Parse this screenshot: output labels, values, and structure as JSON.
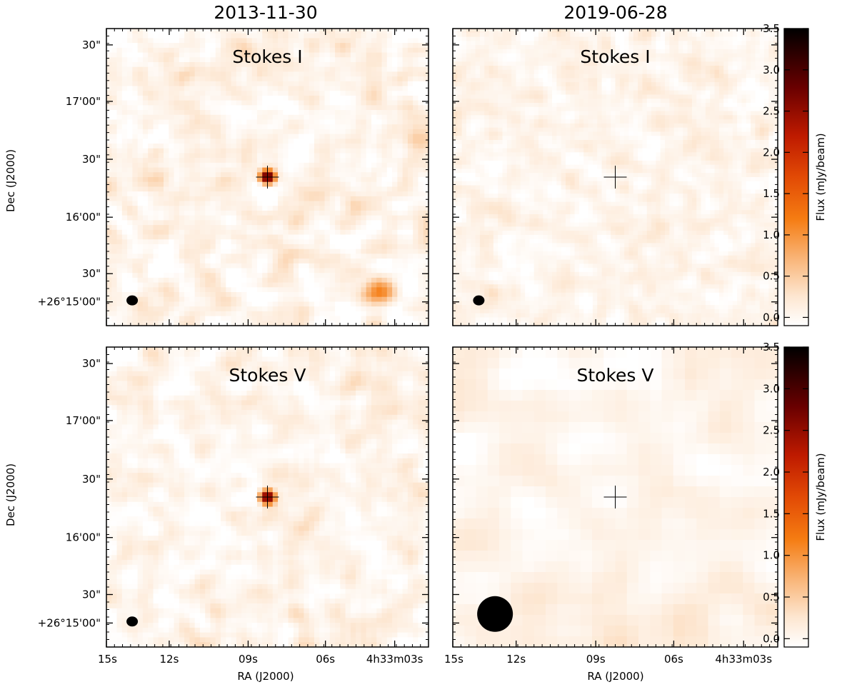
{
  "figure": {
    "column_titles": [
      "2013-11-30",
      "2019-06-28"
    ],
    "ylabel": "Dec (J2000)",
    "xlabel": "RA (J2000)",
    "colorbar_label": "Flux (mJy/beam)",
    "colors": {
      "peak": "#000000",
      "mid": "#d42a00",
      "orange": "#f57a10",
      "light": "#f7b27a",
      "background": "#ffffff"
    }
  },
  "chart_data": [
    {
      "type": "heatmap",
      "id": "p00",
      "title": "Stokes I",
      "date": "2013-11-30",
      "xlabel": "",
      "ylabel": "Dec (J2000)",
      "x_ticks": [],
      "y_ticks": [
        "30\"",
        "17'00\"",
        "30\"",
        "16'00\"",
        "30\"",
        "+26°15'00\""
      ],
      "grid": 62,
      "noise": 0.26,
      "seed": 11,
      "sources": [
        {
          "x": 0.5,
          "y": 0.5,
          "peak": 3.4,
          "sigma": 0.016
        },
        {
          "x": 0.84,
          "y": 0.89,
          "peak": 1.15,
          "sigma": 0.032
        }
      ],
      "marker": {
        "x": 0.5,
        "y": 0.5
      },
      "beam": {
        "x": 0.08,
        "y": 0.915,
        "size": "small"
      }
    },
    {
      "type": "heatmap",
      "id": "p01",
      "title": "Stokes I",
      "date": "2019-06-28",
      "xlabel": "",
      "ylabel": "",
      "x_ticks": [],
      "y_ticks": [],
      "grid": 72,
      "noise": 0.2,
      "seed": 23,
      "sources": [],
      "marker": {
        "x": 0.5,
        "y": 0.5
      },
      "beam": {
        "x": 0.08,
        "y": 0.915,
        "size": "small"
      }
    },
    {
      "type": "heatmap",
      "id": "p10",
      "title": "Stokes V",
      "date": "2013-11-30",
      "xlabel": "RA (J2000)",
      "ylabel": "Dec (J2000)",
      "x_ticks": [
        "15s",
        "12s",
        "09s",
        "06s",
        "4h33m03s"
      ],
      "y_ticks": [
        "30\"",
        "17'00\"",
        "30\"",
        "16'00\"",
        "30\"",
        "+26°15'00\""
      ],
      "grid": 62,
      "noise": 0.23,
      "seed": 37,
      "sources": [
        {
          "x": 0.5,
          "y": 0.5,
          "peak": 3.3,
          "sigma": 0.016
        }
      ],
      "marker": {
        "x": 0.5,
        "y": 0.5
      },
      "beam": {
        "x": 0.08,
        "y": 0.915,
        "size": "small"
      }
    },
    {
      "type": "heatmap",
      "id": "p11",
      "title": "Stokes V",
      "date": "2019-06-28",
      "xlabel": "RA (J2000)",
      "ylabel": "",
      "x_ticks": [
        "15s",
        "12s",
        "09s",
        "06s",
        "4h33m03s"
      ],
      "y_ticks": [],
      "grid": 28,
      "noise": 0.16,
      "seed": 51,
      "sources": [],
      "marker": {
        "x": 0.5,
        "y": 0.5
      },
      "beam": {
        "x": 0.13,
        "y": 0.89,
        "size": "large"
      }
    }
  ],
  "colorbar": {
    "min": -0.1,
    "max": 3.5,
    "ticks": [
      3.5,
      3.0,
      2.5,
      2.0,
      1.5,
      1.0,
      0.5,
      0.0
    ],
    "tick_labels": [
      "3.5",
      "3.0",
      "2.5",
      "2.0",
      "1.5",
      "1.0",
      "0.5",
      "0.0"
    ],
    "label": "Flux (mJy/beam)"
  }
}
